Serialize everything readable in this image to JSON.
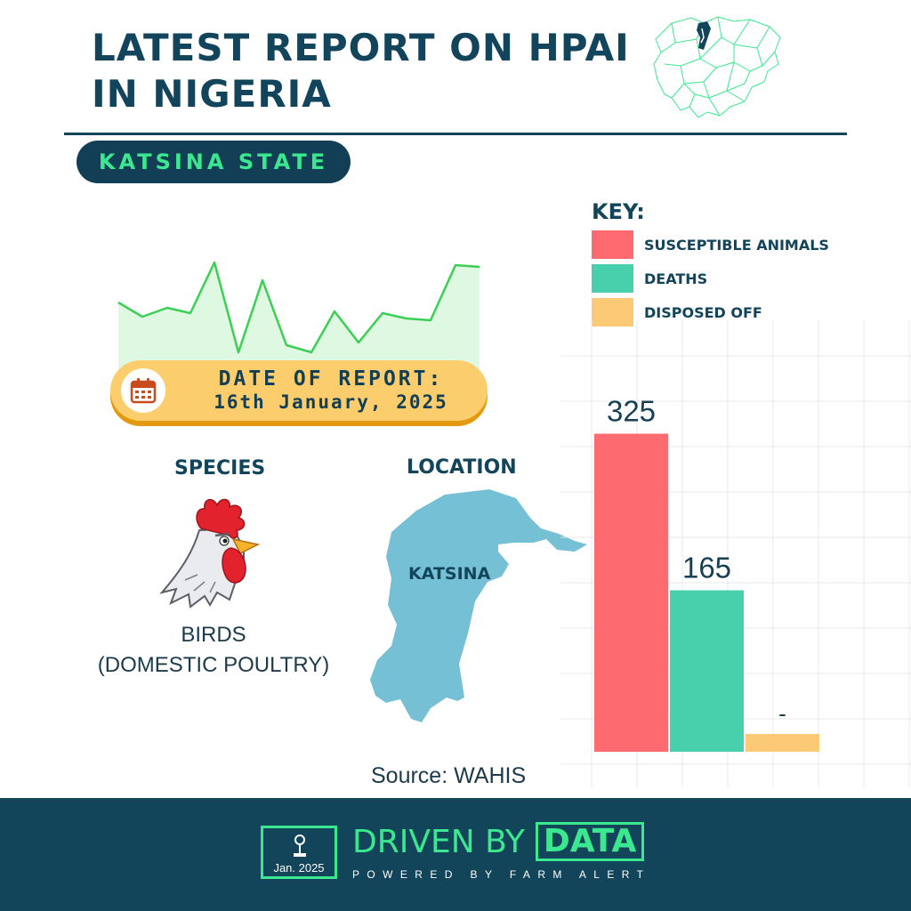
{
  "header": {
    "title_line1": "LATEST REPORT ON HPAI",
    "title_line2": "IN NIGERIA",
    "state": "KATSINA STATE"
  },
  "report": {
    "date_label": "DATE OF REPORT:",
    "date_value": "16th January, 2025"
  },
  "species": {
    "heading": "SPECIES",
    "line1": "BIRDS",
    "line2": "(DOMESTIC POULTRY)"
  },
  "location": {
    "heading": "LOCATION",
    "map_label": "KATSINA"
  },
  "key": {
    "title": "KEY:",
    "items": [
      {
        "label": "SUSCEPTIBLE ANIMALS",
        "color": "#fd6b70"
      },
      {
        "label": "DEATHS",
        "color": "#48d0ad"
      },
      {
        "label": "DISPOSED OFF",
        "color": "#fcc977"
      }
    ]
  },
  "colors": {
    "navy": "#12455b",
    "green": "#3ce88f",
    "sparkline": "#3ccf55",
    "location_blue": "#76c0d6",
    "date_pill": "#fbcd6c"
  },
  "chart_data": {
    "type": "bar",
    "categories": [
      "SUSCEPTIBLE ANIMALS",
      "DEATHS",
      "DISPOSED OFF"
    ],
    "values": [
      325,
      165,
      null
    ],
    "labels": [
      "325",
      "165",
      "-"
    ],
    "colors": [
      "#fd6b70",
      "#48d0ad",
      "#fcc977"
    ],
    "ylim": [
      0,
      400
    ],
    "grid": true,
    "title": "",
    "xlabel": "",
    "ylabel": ""
  },
  "source": "Source: WAHIS",
  "footer": {
    "badge_date": "Jan. 2025",
    "brand_text": "DRIVEN BY",
    "brand_highlight": "DATA",
    "tagline": "POWERED BY FARM ALERT"
  }
}
